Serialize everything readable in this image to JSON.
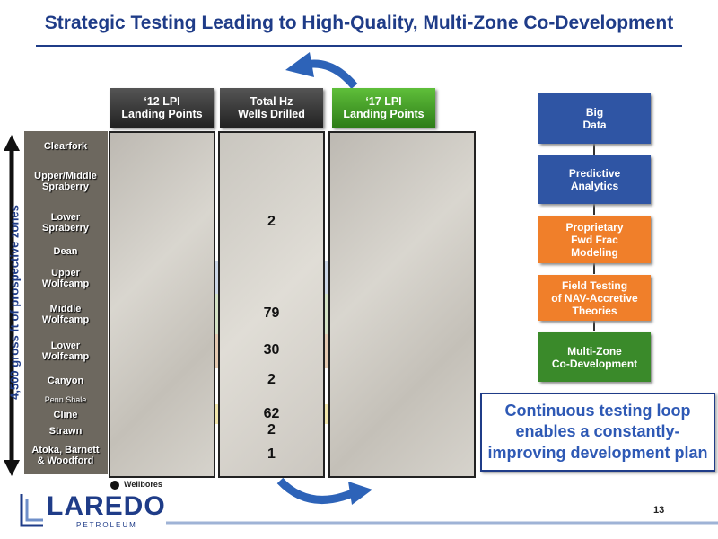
{
  "header": {
    "title": "Strategic Testing Leading to High-Quality, Multi-Zone Co-Development"
  },
  "columns": [
    {
      "lines": [
        "‘12 LPI",
        "Landing Points"
      ]
    },
    {
      "lines": [
        "Total Hz",
        "Wells Drilled"
      ]
    },
    {
      "lines": [
        "‘17 LPI",
        "Landing Points"
      ]
    }
  ],
  "side_label": "4,500 gross ft of prospective zones",
  "zones": [
    {
      "lines": [
        "Clearfork"
      ]
    },
    {
      "lines": [
        "Upper/Middle",
        "Spraberry"
      ]
    },
    {
      "lines": [
        "Lower",
        "Spraberry"
      ],
      "wells": 2
    },
    {
      "lines": [
        "Dean"
      ]
    },
    {
      "lines": [
        "Upper",
        "Wolfcamp"
      ]
    },
    {
      "lines": [
        "Middle",
        "Wolfcamp"
      ],
      "wells": 79
    },
    {
      "lines": [
        "Lower",
        "Wolfcamp"
      ],
      "wells": 30
    },
    {
      "lines": [
        "Canyon"
      ],
      "wells": 2
    },
    {
      "lines": [
        "Penn Shale"
      ]
    },
    {
      "lines": [
        "Cline"
      ],
      "wells": 62
    },
    {
      "lines": [
        "Strawn"
      ],
      "wells": 2
    },
    {
      "lines": [
        "Atoka, Barnett",
        "& Woodford"
      ],
      "wells": 1
    }
  ],
  "legend": "Wellbores",
  "flow": [
    {
      "lines": [
        "Big",
        "Data"
      ]
    },
    {
      "lines": [
        "Predictive",
        "Analytics"
      ]
    },
    {
      "lines": [
        "Proprietary",
        "Fwd Frac",
        "Modeling"
      ]
    },
    {
      "lines": [
        "Field Testing",
        "of NAV-Accretive",
        "Theories"
      ]
    },
    {
      "lines": [
        "Multi-Zone",
        "Co-Development"
      ]
    }
  ],
  "callout": "Continuous testing loop enables a constantly-improving development plan",
  "footer": {
    "logo": "LAREDO",
    "logo_sub": "PETROLEUM",
    "page": "13"
  }
}
